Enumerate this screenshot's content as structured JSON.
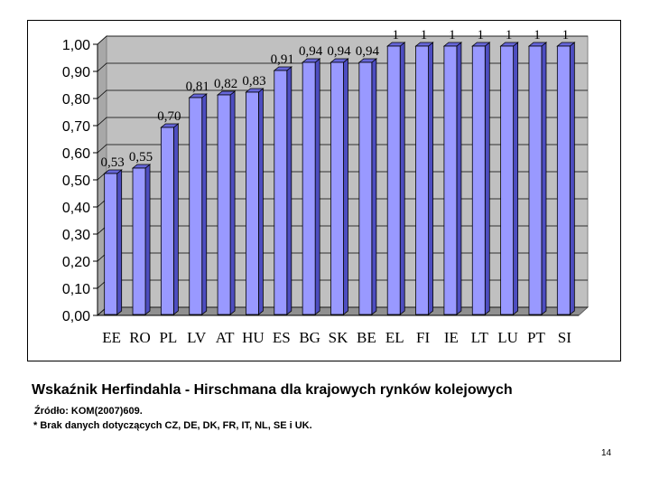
{
  "chart_data": {
    "type": "bar",
    "categories": [
      "EE",
      "RO",
      "PL",
      "LV",
      "AT",
      "HU",
      "ES",
      "BG",
      "SK",
      "BE",
      "EL",
      "FI",
      "IE",
      "LT",
      "LU",
      "PT",
      "SI"
    ],
    "values": [
      0.53,
      0.55,
      0.7,
      0.81,
      0.82,
      0.83,
      0.91,
      0.94,
      0.94,
      0.94,
      1,
      1,
      1,
      1,
      1,
      1,
      1
    ],
    "data_labels": [
      "0,53",
      "0,55",
      "0,70",
      "0,81",
      "0,82",
      "0,83",
      "0,91",
      "0,94",
      "0,94",
      "0,94",
      "1",
      "1",
      "1",
      "1",
      "1",
      "1",
      "1"
    ],
    "y_ticks": [
      "0,00",
      "0,10",
      "0,20",
      "0,30",
      "0,40",
      "0,50",
      "0,60",
      "0,70",
      "0,80",
      "0,90",
      "1,00"
    ],
    "ylim": [
      0,
      1
    ],
    "grid": true,
    "bar_color": "#9999ff",
    "plot_bg": "#c0c0c0"
  },
  "caption": {
    "title": "Wskaźnik Herfindahla - Hirschmana dla krajowych rynków kolejowych",
    "source": "Źródło: KOM(2007)609.",
    "note": "* Brak danych dotyczących CZ, DE, DK, FR, IT, NL, SE i UK."
  },
  "page_number": "14"
}
